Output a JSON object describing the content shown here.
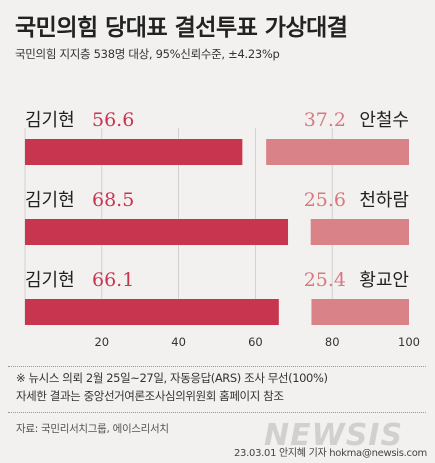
{
  "header": {
    "title": "국민의힘 당대표 결선투표 가상대결",
    "subtitle": "국민의힘 지지층 538명 대상, 95%신뢰수준, ±4.23%p"
  },
  "notes": {
    "line1": "※ 뉴시스 의뢰 2월 25일~27일, 자동응답(ARS) 조사 무선(100%)",
    "line2": "자세한 결과는 중앙선거여론조사심의위원회 홈페이지 참조"
  },
  "source": "자료: 국민리서치그룹, 에이스리서치",
  "credit": "23.03.01 안지혜 기자 hokma@newsis.com",
  "watermark": "NEWSIS",
  "colors": {
    "left_bar": "#c8354e",
    "right_bar": "#d98287",
    "left_value_text": "#c8354e",
    "right_value_text": "#d57a80",
    "background": "#f2f1ef"
  },
  "chart_data": {
    "type": "bar",
    "orientation": "horizontal-diverging",
    "xlim": [
      0,
      100
    ],
    "xticks": [
      20,
      40,
      60,
      80,
      100
    ],
    "rows": [
      {
        "left_name": "김기현",
        "left_value": 56.6,
        "left_label": "56.6",
        "right_name": "안철수",
        "right_value": 37.2,
        "right_label": "37.2"
      },
      {
        "left_name": "김기현",
        "left_value": 68.5,
        "left_label": "68.5",
        "right_name": "천하람",
        "right_value": 25.6,
        "right_label": "25.6"
      },
      {
        "left_name": "김기현",
        "left_value": 66.1,
        "left_label": "66.1",
        "right_name": "황교안",
        "right_value": 25.4,
        "right_label": "25.4"
      }
    ]
  }
}
